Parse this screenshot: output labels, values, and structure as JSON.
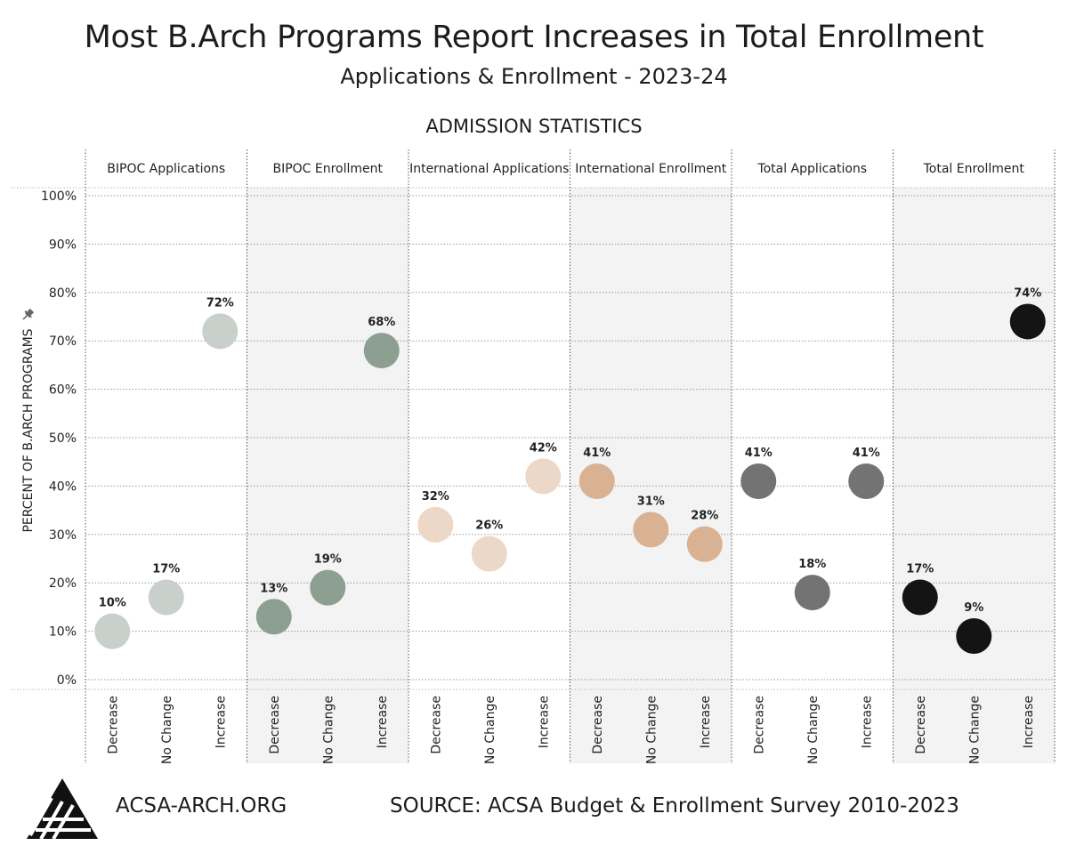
{
  "header": {
    "title": "Most B.Arch Programs Report Increases in Total Enrollment",
    "subtitle": "Applications & Enrollment - 2023-24",
    "section": "ADMISSION STATISTICS"
  },
  "footer": {
    "url": "ACSA-ARCH.ORG",
    "source": "SOURCE: ACSA Budget & Enrollment Survey 2010-2023"
  },
  "chart_data": {
    "type": "scatter",
    "ylabel": "PERCENT OF B.ARCH PROGRAMS",
    "ylim": [
      0,
      100
    ],
    "yticks": [
      0,
      10,
      20,
      30,
      40,
      50,
      60,
      70,
      80,
      90,
      100
    ],
    "ytick_labels": [
      "0%",
      "10%",
      "20%",
      "30%",
      "40%",
      "50%",
      "60%",
      "70%",
      "80%",
      "90%",
      "100%"
    ],
    "categories": [
      "Decrease",
      "No Change",
      "Increase"
    ],
    "grid": true,
    "panels": [
      {
        "name": "BIPOC Applications",
        "color": "#c9d0cb",
        "values": [
          10,
          17,
          72
        ],
        "labels": [
          "10%",
          "17%",
          "72%"
        ],
        "shaded": false
      },
      {
        "name": "BIPOC Enrollment",
        "color": "#8c9f91",
        "values": [
          13,
          19,
          68
        ],
        "labels": [
          "13%",
          "19%",
          "68%"
        ],
        "shaded": true
      },
      {
        "name": "International Applications",
        "color": "#ecd8c8",
        "values": [
          32,
          26,
          42
        ],
        "labels": [
          "32%",
          "26%",
          "42%"
        ],
        "shaded": false
      },
      {
        "name": "International Enrollment",
        "color": "#d9b293",
        "values": [
          41,
          31,
          28
        ],
        "labels": [
          "41%",
          "31%",
          "28%"
        ],
        "shaded": true
      },
      {
        "name": "Total Applications",
        "color": "#737373",
        "values": [
          41,
          18,
          41
        ],
        "labels": [
          "41%",
          "18%",
          "41%"
        ],
        "shaded": false
      },
      {
        "name": "Total Enrollment",
        "color": "#141414",
        "values": [
          17,
          9,
          74
        ],
        "labels": [
          "17%",
          "9%",
          "74%"
        ],
        "shaded": true
      }
    ]
  }
}
